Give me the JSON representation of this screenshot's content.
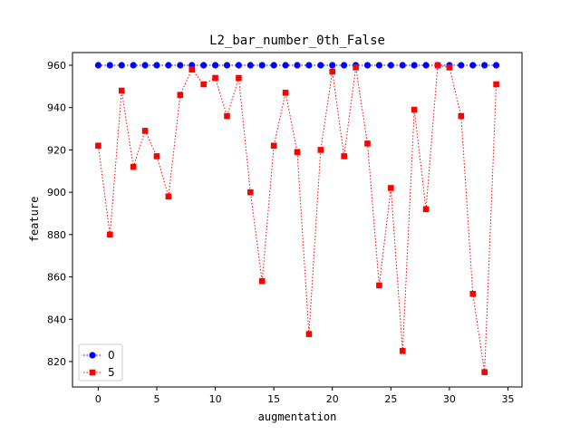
{
  "chart_data": {
    "type": "line",
    "title": "L2_bar_number_0th_False",
    "xlabel": "augmentation",
    "ylabel": "feature",
    "xlim": [
      -2.2,
      36.2
    ],
    "ylim": [
      808,
      966
    ],
    "xticks": [
      0,
      5,
      10,
      15,
      20,
      25,
      30,
      35
    ],
    "yticks": [
      820,
      840,
      860,
      880,
      900,
      920,
      940,
      960
    ],
    "grid": false,
    "legend_position": "lower-left",
    "x": [
      0,
      1,
      2,
      3,
      4,
      5,
      6,
      7,
      8,
      9,
      10,
      11,
      12,
      13,
      14,
      15,
      16,
      17,
      18,
      19,
      20,
      21,
      22,
      23,
      24,
      25,
      26,
      27,
      28,
      29,
      30,
      31,
      32,
      33,
      34
    ],
    "series": [
      {
        "name": "0",
        "color": "#0000ff",
        "marker": "circle",
        "linestyle": "dotted",
        "values": [
          960,
          960,
          960,
          960,
          960,
          960,
          960,
          960,
          960,
          960,
          960,
          960,
          960,
          960,
          960,
          960,
          960,
          960,
          960,
          960,
          960,
          960,
          960,
          960,
          960,
          960,
          960,
          960,
          960,
          960,
          960,
          960,
          960,
          960,
          960
        ]
      },
      {
        "name": "5",
        "color": "#ff0000",
        "marker": "square",
        "linestyle": "dotted",
        "values": [
          922,
          880,
          948,
          912,
          929,
          917,
          898,
          946,
          958,
          951,
          954,
          936,
          954,
          900,
          858,
          922,
          947,
          919,
          833,
          920,
          957,
          917,
          959,
          923,
          856,
          902,
          825,
          939,
          892,
          960,
          959,
          936,
          852,
          815,
          951
        ]
      }
    ]
  }
}
